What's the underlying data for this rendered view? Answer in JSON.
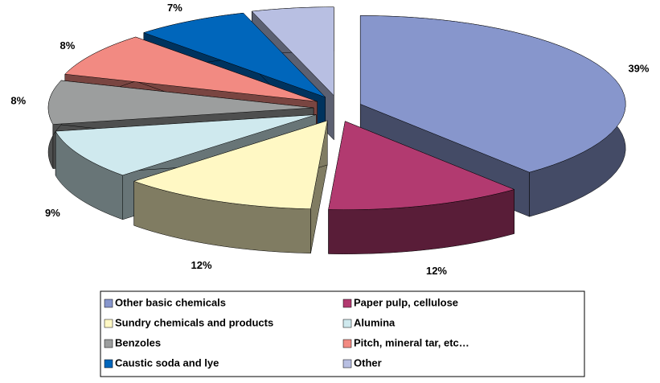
{
  "chart_data": {
    "type": "pie3d",
    "categories": [
      "Other basic chemicals",
      "Paper pulp, cellulose",
      "Sundry chemicals and products",
      "Alumina",
      "Benzoles",
      "Pitch, mineral tar, etc…",
      "Caustic soda and lye",
      "Other"
    ],
    "values": [
      39,
      12,
      12,
      9,
      8,
      8,
      7,
      5
    ],
    "value_labels": [
      "39%",
      "12%",
      "12%",
      "9%",
      "8%",
      "8%",
      "7%",
      "5%"
    ],
    "colors": [
      "#8796cc",
      "#b23a70",
      "#fff8c4",
      "#cfe9ee",
      "#9c9e9e",
      "#f28a82",
      "#0066bb",
      "#b8bfe2"
    ],
    "legend": "bottom"
  }
}
